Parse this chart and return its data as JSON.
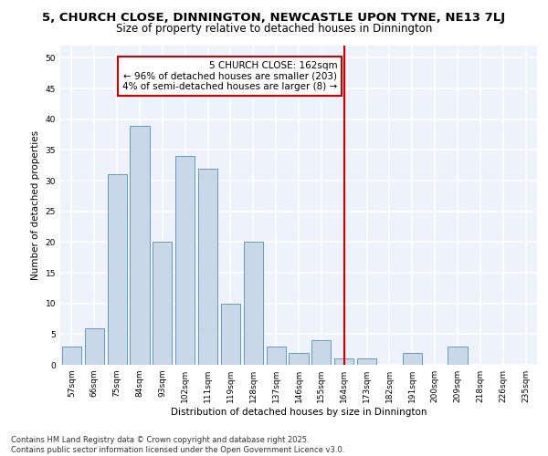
{
  "title": "5, CHURCH CLOSE, DINNINGTON, NEWCASTLE UPON TYNE, NE13 7LJ",
  "subtitle": "Size of property relative to detached houses in Dinnington",
  "xlabel": "Distribution of detached houses by size in Dinnington",
  "ylabel": "Number of detached properties",
  "categories": [
    "57sqm",
    "66sqm",
    "75sqm",
    "84sqm",
    "93sqm",
    "102sqm",
    "111sqm",
    "119sqm",
    "128sqm",
    "137sqm",
    "146sqm",
    "155sqm",
    "164sqm",
    "173sqm",
    "182sqm",
    "191sqm",
    "200sqm",
    "209sqm",
    "218sqm",
    "226sqm",
    "235sqm"
  ],
  "values": [
    3,
    6,
    31,
    39,
    20,
    34,
    32,
    10,
    20,
    3,
    2,
    4,
    1,
    1,
    0,
    2,
    0,
    3,
    0,
    0,
    0
  ],
  "bar_color": "#c8d8e8",
  "bar_edge_color": "#6699bb",
  "vline_index": 12,
  "vline_color": "#cc0000",
  "annotation_text": "5 CHURCH CLOSE: 162sqm\n← 96% of detached houses are smaller (203)\n4% of semi-detached houses are larger (8) →",
  "ylim": [
    0,
    52
  ],
  "yticks": [
    0,
    5,
    10,
    15,
    20,
    25,
    30,
    35,
    40,
    45,
    50
  ],
  "footer_text": "Contains HM Land Registry data © Crown copyright and database right 2025.\nContains public sector information licensed under the Open Government Licence v3.0.",
  "background_color": "#eef2fb",
  "grid_color": "#ffffff",
  "title_fontsize": 9.5,
  "subtitle_fontsize": 8.5,
  "axis_label_fontsize": 7.5,
  "tick_fontsize": 6.5,
  "annotation_fontsize": 7.5,
  "footer_fontsize": 6.0
}
